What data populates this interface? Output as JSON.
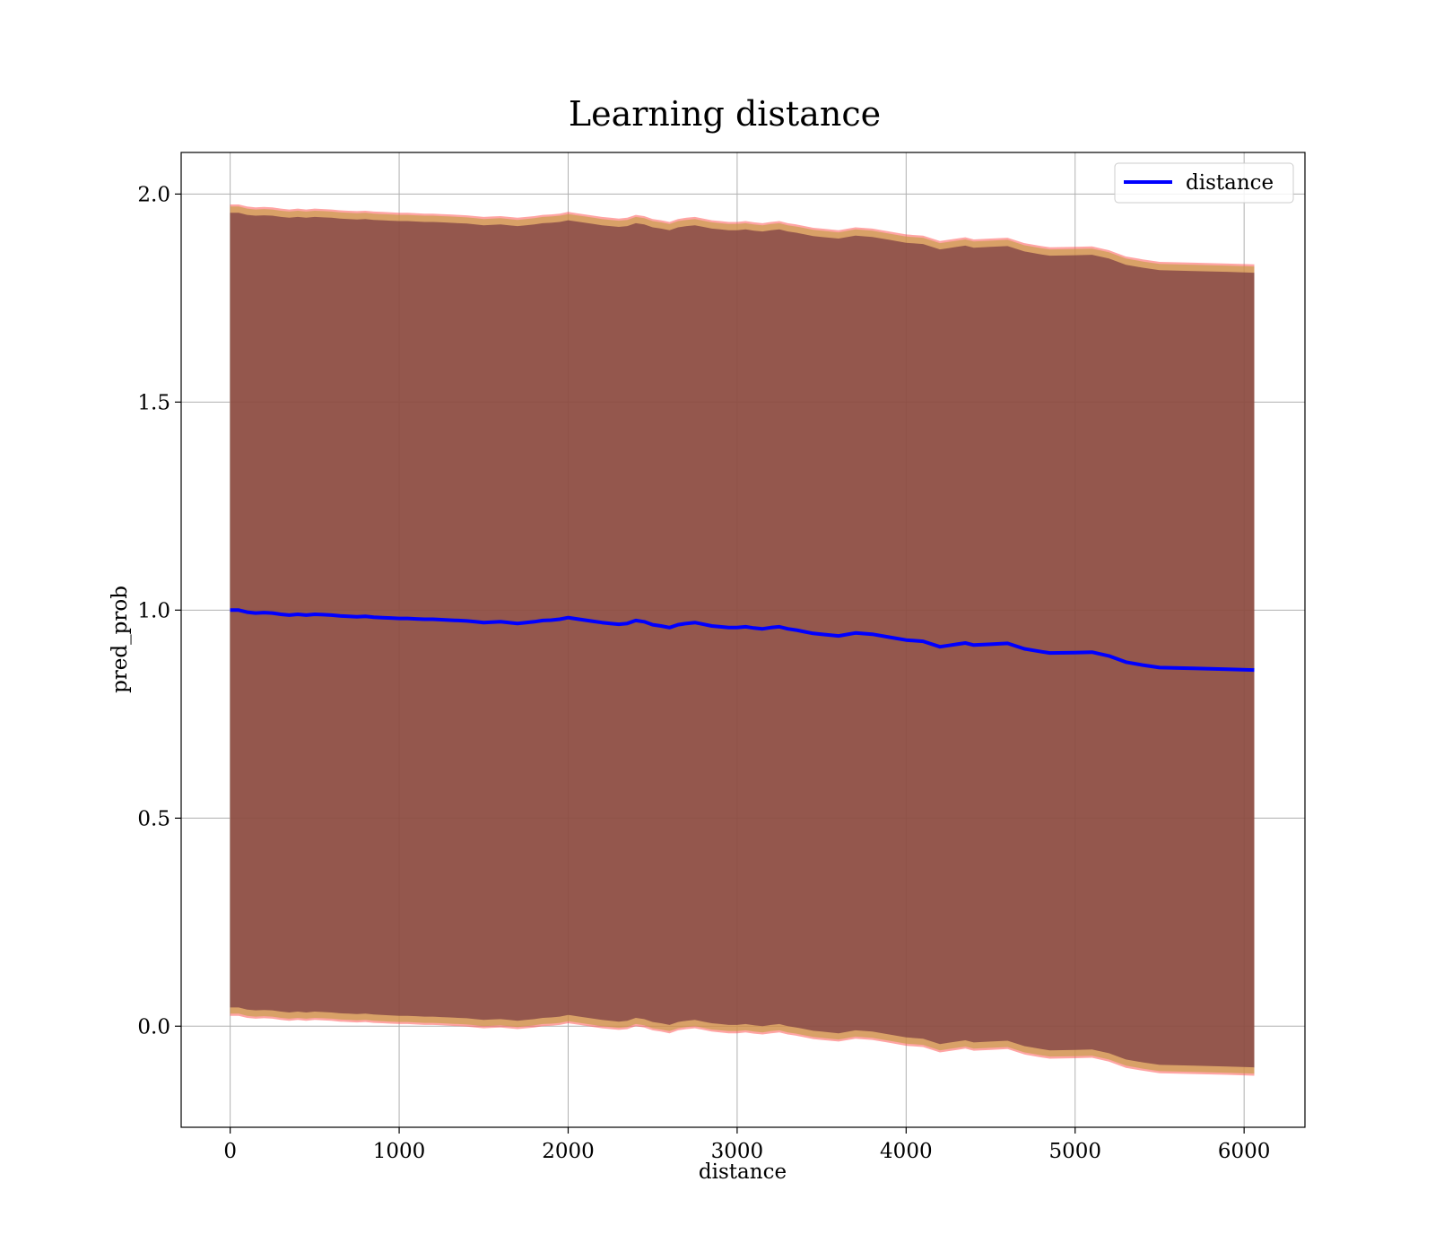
{
  "chart_data": {
    "type": "line",
    "title": "Learning distance",
    "xlabel": "distance",
    "ylabel": "pred_prob",
    "xlim": [
      -290,
      6360
    ],
    "ylim": [
      -0.243,
      2.1
    ],
    "xticks": [
      0,
      1000,
      2000,
      3000,
      4000,
      5000,
      6000
    ],
    "yticks": [
      0.0,
      0.5,
      1.0,
      1.5,
      2.0
    ],
    "xtick_labels": [
      "0",
      "1000",
      "2000",
      "3000",
      "4000",
      "5000",
      "6000"
    ],
    "ytick_labels": [
      "0.0",
      "0.5",
      "1.0",
      "1.5",
      "2.0"
    ],
    "grid": true,
    "legend": {
      "position": "upper-right",
      "entries": [
        "distance"
      ]
    },
    "colors": {
      "line": "#0000ff",
      "inner_band": "#6e2f3f",
      "outer_band": "#ff5a5a",
      "mid_band": "#c0a040",
      "grid": "#b0b0b0"
    },
    "series": [
      {
        "name": "distance",
        "x": [
          0,
          50,
          100,
          150,
          200,
          250,
          300,
          350,
          400,
          450,
          500,
          550,
          600,
          650,
          700,
          750,
          800,
          850,
          900,
          950,
          1000,
          1050,
          1100,
          1150,
          1200,
          1250,
          1300,
          1350,
          1400,
          1450,
          1500,
          1550,
          1600,
          1650,
          1700,
          1750,
          1800,
          1850,
          1900,
          1950,
          2000,
          2050,
          2100,
          2150,
          2200,
          2250,
          2300,
          2350,
          2400,
          2450,
          2500,
          2550,
          2600,
          2650,
          2700,
          2750,
          2800,
          2850,
          2900,
          2950,
          3000,
          3050,
          3100,
          3150,
          3200,
          3250,
          3300,
          3350,
          3400,
          3450,
          3500,
          3600,
          3700,
          3800,
          3900,
          4000,
          4100,
          4200,
          4250,
          4300,
          4350,
          4400,
          4500,
          4600,
          4700,
          4800,
          4850,
          5000,
          5100,
          5200,
          5300,
          5400,
          5500,
          5700,
          5900,
          6060
        ],
        "y": [
          1.0,
          1.0,
          0.995,
          0.993,
          0.994,
          0.993,
          0.99,
          0.988,
          0.99,
          0.988,
          0.99,
          0.989,
          0.988,
          0.986,
          0.985,
          0.984,
          0.985,
          0.983,
          0.982,
          0.981,
          0.98,
          0.98,
          0.979,
          0.978,
          0.978,
          0.977,
          0.976,
          0.975,
          0.974,
          0.972,
          0.97,
          0.971,
          0.972,
          0.97,
          0.968,
          0.97,
          0.972,
          0.975,
          0.976,
          0.978,
          0.982,
          0.979,
          0.976,
          0.973,
          0.97,
          0.968,
          0.966,
          0.968,
          0.975,
          0.972,
          0.965,
          0.962,
          0.958,
          0.965,
          0.968,
          0.97,
          0.966,
          0.962,
          0.96,
          0.958,
          0.958,
          0.96,
          0.957,
          0.955,
          0.958,
          0.96,
          0.955,
          0.952,
          0.948,
          0.944,
          0.942,
          0.938,
          0.945,
          0.942,
          0.935,
          0.928,
          0.925,
          0.912,
          0.915,
          0.918,
          0.921,
          0.916,
          0.918,
          0.92,
          0.907,
          0.9,
          0.897,
          0.898,
          0.899,
          0.89,
          0.875,
          0.868,
          0.862,
          0.86,
          0.858,
          0.856
        ]
      }
    ],
    "band": {
      "upper_offsets": [
        0.975,
        0.97,
        0.955
      ],
      "lower_offsets": [
        0.975,
        0.97,
        0.955
      ]
    }
  }
}
